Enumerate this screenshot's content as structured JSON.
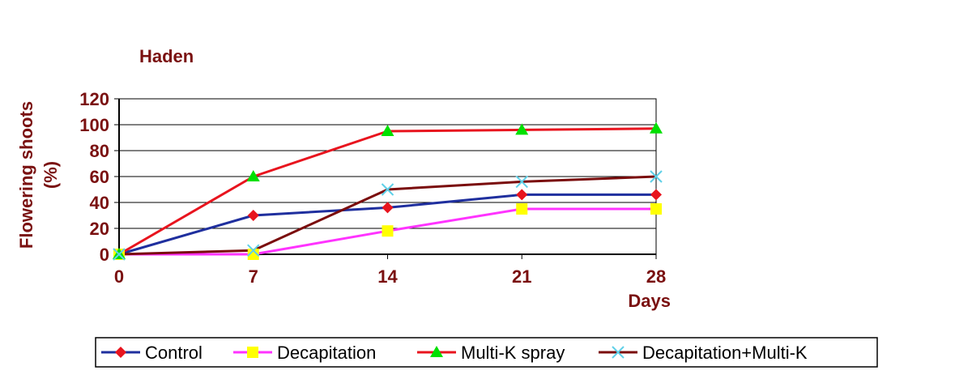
{
  "chart_data": {
    "type": "line",
    "title": "Haden",
    "ylabel_line1": "Flowering shoots",
    "ylabel_line2": "(%)",
    "xlabel": "Days",
    "x": [
      0,
      7,
      14,
      21,
      28
    ],
    "ylim": [
      0,
      120
    ],
    "yticks": [
      0,
      20,
      40,
      60,
      80,
      100,
      120
    ],
    "grid": "horizontal",
    "legend_position": "bottom",
    "series": [
      {
        "name": "Control",
        "values": [
          0,
          30,
          36,
          46,
          46
        ],
        "color": "#1f2f9e",
        "marker_color": "#e8141e",
        "marker": "diamond"
      },
      {
        "name": "Decapitation",
        "values": [
          0,
          0,
          18,
          35,
          35
        ],
        "color": "#ff33ff",
        "marker_color": "#ffff00",
        "marker": "square"
      },
      {
        "name": "Multi-K spray",
        "values": [
          0,
          60,
          95,
          96,
          97
        ],
        "color": "#e8141e",
        "marker_color": "#00e000",
        "marker": "triangle"
      },
      {
        "name": "Decapitation+Multi-K",
        "values": [
          0,
          3,
          50,
          56,
          60
        ],
        "color": "#7a0c0c",
        "marker_color": "#5fd0e8",
        "marker": "x"
      }
    ],
    "colors": {
      "axis_text": "#7a1010",
      "grid": "#000000"
    }
  }
}
